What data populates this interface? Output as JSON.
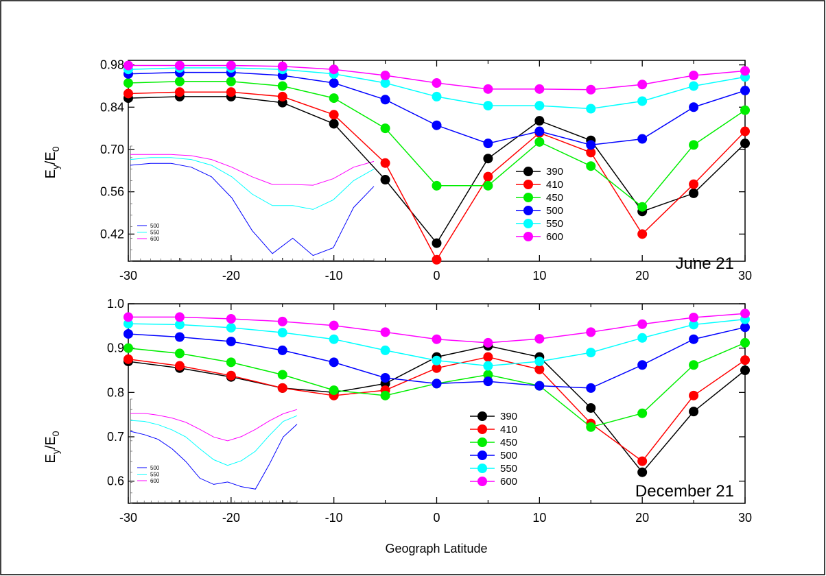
{
  "chart_data": [
    {
      "type": "line",
      "annotation": "June 21",
      "ylabel_main": "E",
      "ylabel_sub1": "y",
      "ylabel_mid": "/E",
      "ylabel_sub2": "0",
      "x": [
        -30,
        -25,
        -20,
        -15,
        -10,
        -5,
        0,
        5,
        10,
        15,
        20,
        25,
        30
      ],
      "xlim": [
        -30,
        30
      ],
      "ylim": [
        0.33,
        0.995
      ],
      "x_ticks": [
        -30,
        -20,
        -10,
        0,
        10,
        20,
        30
      ],
      "x_tick_labels": [
        "-30",
        "-20",
        "-10",
        "0",
        "10",
        "20",
        "30"
      ],
      "y_ticks": [
        0.42,
        0.56,
        0.7,
        0.84,
        0.98
      ],
      "y_tick_labels": [
        "0.42",
        "0.56",
        "0.70",
        "0.84",
        "0.98"
      ],
      "legend_position": "center-right",
      "series": [
        {
          "name": "390",
          "color": "#000000",
          "values": [
            0.87,
            0.875,
            0.875,
            0.855,
            0.785,
            0.6,
            0.39,
            0.67,
            0.795,
            0.73,
            0.495,
            0.555,
            0.72
          ]
        },
        {
          "name": "410",
          "color": "#ff0000",
          "values": [
            0.885,
            0.89,
            0.89,
            0.875,
            0.815,
            0.655,
            0.335,
            0.61,
            0.755,
            0.69,
            0.42,
            0.585,
            0.76
          ]
        },
        {
          "name": "450",
          "color": "#00ee00",
          "values": [
            0.92,
            0.925,
            0.925,
            0.91,
            0.87,
            0.77,
            0.58,
            0.58,
            0.725,
            0.645,
            0.51,
            0.715,
            0.83
          ]
        },
        {
          "name": "500",
          "color": "#0000ff",
          "values": [
            0.95,
            0.955,
            0.955,
            0.945,
            0.92,
            0.865,
            0.78,
            0.72,
            0.76,
            0.715,
            0.735,
            0.84,
            0.895
          ]
        },
        {
          "name": "550",
          "color": "#00ffff",
          "values": [
            0.965,
            0.97,
            0.97,
            0.965,
            0.95,
            0.92,
            0.875,
            0.845,
            0.845,
            0.835,
            0.86,
            0.91,
            0.94
          ]
        },
        {
          "name": "600",
          "color": "#ff00ff",
          "values": [
            0.978,
            0.978,
            0.978,
            0.975,
            0.965,
            0.945,
            0.92,
            0.9,
            0.9,
            0.898,
            0.915,
            0.945,
            0.96
          ]
        }
      ],
      "inset": {
        "type": "line",
        "legend": [
          "500",
          "550",
          "600"
        ],
        "ylim": [
          0.7,
          1.0
        ],
        "series": [
          {
            "name": "500",
            "color": "#0000ff",
            "values": [
              0.95,
              0.955,
              0.955,
              0.945,
              0.92,
              0.865,
              0.78,
              0.72,
              0.76,
              0.715,
              0.735,
              0.84,
              0.895
            ]
          },
          {
            "name": "550",
            "color": "#00ffff",
            "values": [
              0.965,
              0.97,
              0.97,
              0.965,
              0.95,
              0.92,
              0.875,
              0.845,
              0.845,
              0.835,
              0.86,
              0.91,
              0.94
            ]
          },
          {
            "name": "600",
            "color": "#ff00ff",
            "values": [
              0.978,
              0.978,
              0.978,
              0.975,
              0.965,
              0.945,
              0.92,
              0.9,
              0.9,
              0.898,
              0.915,
              0.945,
              0.96
            ]
          }
        ]
      }
    },
    {
      "type": "line",
      "annotation": "December 21",
      "ylabel_main": "E",
      "ylabel_sub1": "y",
      "ylabel_mid": "/E",
      "ylabel_sub2": "0",
      "xlabel": "Geograph Latitude",
      "x": [
        -30,
        -25,
        -20,
        -15,
        -10,
        -5,
        0,
        5,
        10,
        15,
        20,
        25,
        30
      ],
      "xlim": [
        -30,
        30
      ],
      "ylim": [
        0.55,
        1.0
      ],
      "x_ticks": [
        -30,
        -20,
        -10,
        0,
        10,
        20,
        30
      ],
      "x_tick_labels": [
        "-30",
        "-20",
        "-10",
        "0",
        "10",
        "20",
        "30"
      ],
      "y_ticks": [
        0.6,
        0.7,
        0.8,
        0.9,
        1.0
      ],
      "y_tick_labels": [
        "0.6",
        "0.7",
        "0.8",
        "0.9",
        "1.0"
      ],
      "legend_position": "center-right",
      "series": [
        {
          "name": "390",
          "color": "#000000",
          "values": [
            0.87,
            0.855,
            0.835,
            0.81,
            0.8,
            0.82,
            0.88,
            0.905,
            0.88,
            0.765,
            0.62,
            0.757,
            0.85
          ]
        },
        {
          "name": "410",
          "color": "#ff0000",
          "values": [
            0.875,
            0.86,
            0.838,
            0.81,
            0.793,
            0.805,
            0.855,
            0.88,
            0.852,
            0.73,
            0.645,
            0.793,
            0.873
          ]
        },
        {
          "name": "450",
          "color": "#00ee00",
          "values": [
            0.9,
            0.888,
            0.868,
            0.84,
            0.805,
            0.793,
            0.82,
            0.84,
            0.815,
            0.722,
            0.753,
            0.862,
            0.912
          ]
        },
        {
          "name": "500",
          "color": "#0000ff",
          "values": [
            0.932,
            0.925,
            0.915,
            0.895,
            0.868,
            0.833,
            0.82,
            0.825,
            0.815,
            0.81,
            0.862,
            0.92,
            0.947
          ]
        },
        {
          "name": "550",
          "color": "#00ffff",
          "values": [
            0.955,
            0.953,
            0.946,
            0.935,
            0.92,
            0.895,
            0.872,
            0.86,
            0.87,
            0.89,
            0.923,
            0.953,
            0.965
          ]
        },
        {
          "name": "600",
          "color": "#ff00ff",
          "values": [
            0.97,
            0.97,
            0.966,
            0.96,
            0.951,
            0.936,
            0.92,
            0.912,
            0.921,
            0.936,
            0.954,
            0.969,
            0.978
          ]
        }
      ],
      "inset": {
        "type": "line",
        "legend": [
          "500",
          "550",
          "600"
        ],
        "ylim": [
          0.78,
          1.0
        ],
        "series": [
          {
            "name": "500",
            "color": "#0000ff",
            "values": [
              0.932,
              0.925,
              0.915,
              0.895,
              0.868,
              0.833,
              0.82,
              0.825,
              0.815,
              0.81,
              0.862,
              0.92,
              0.947
            ]
          },
          {
            "name": "550",
            "color": "#00ffff",
            "values": [
              0.955,
              0.953,
              0.946,
              0.935,
              0.92,
              0.895,
              0.872,
              0.86,
              0.87,
              0.89,
              0.923,
              0.953,
              0.965
            ]
          },
          {
            "name": "600",
            "color": "#ff00ff",
            "values": [
              0.97,
              0.97,
              0.966,
              0.96,
              0.951,
              0.936,
              0.92,
              0.912,
              0.921,
              0.936,
              0.954,
              0.969,
              0.978
            ]
          }
        ]
      }
    }
  ]
}
